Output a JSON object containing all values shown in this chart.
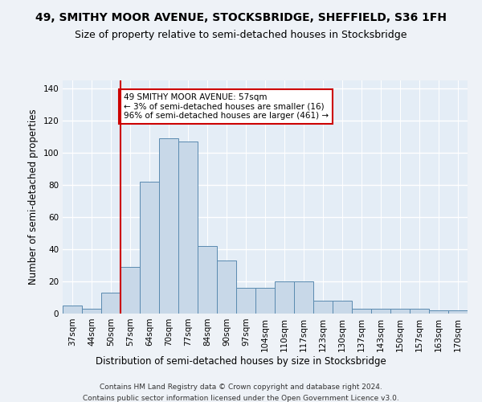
{
  "title": "49, SMITHY MOOR AVENUE, STOCKSBRIDGE, SHEFFIELD, S36 1FH",
  "subtitle": "Size of property relative to semi-detached houses in Stocksbridge",
  "xlabel": "Distribution of semi-detached houses by size in Stocksbridge",
  "ylabel": "Number of semi-detached properties",
  "footer1": "Contains HM Land Registry data © Crown copyright and database right 2024.",
  "footer2": "Contains public sector information licensed under the Open Government Licence v3.0.",
  "annotation_title": "49 SMITHY MOOR AVENUE: 57sqm",
  "annotation_line2": "← 3% of semi-detached houses are smaller (16)",
  "annotation_line3": "96% of semi-detached houses are larger (461) →",
  "bar_labels": [
    "37sqm",
    "44sqm",
    "50sqm",
    "57sqm",
    "64sqm",
    "70sqm",
    "77sqm",
    "84sqm",
    "90sqm",
    "97sqm",
    "104sqm",
    "110sqm",
    "117sqm",
    "123sqm",
    "130sqm",
    "137sqm",
    "143sqm",
    "150sqm",
    "157sqm",
    "163sqm",
    "170sqm"
  ],
  "bar_values": [
    5,
    3,
    13,
    29,
    82,
    109,
    107,
    42,
    33,
    16,
    16,
    20,
    20,
    8,
    8,
    3,
    3,
    3,
    3,
    2,
    2
  ],
  "bar_color": "#c8d8e8",
  "bar_edge_color": "#5a8ab0",
  "red_line_index": 2,
  "ylim": [
    0,
    145
  ],
  "yticks": [
    0,
    20,
    40,
    60,
    80,
    100,
    120,
    140
  ],
  "background_color": "#eef2f7",
  "plot_bg_color": "#e4edf6",
  "grid_color": "#ffffff",
  "annotation_box_color": "#ffffff",
  "annotation_box_edge": "#cc0000",
  "red_line_color": "#cc0000",
  "title_fontsize": 10,
  "subtitle_fontsize": 9,
  "xlabel_fontsize": 8.5,
  "ylabel_fontsize": 8.5,
  "tick_fontsize": 7.5,
  "annotation_fontsize": 7.5,
  "footer_fontsize": 6.5
}
